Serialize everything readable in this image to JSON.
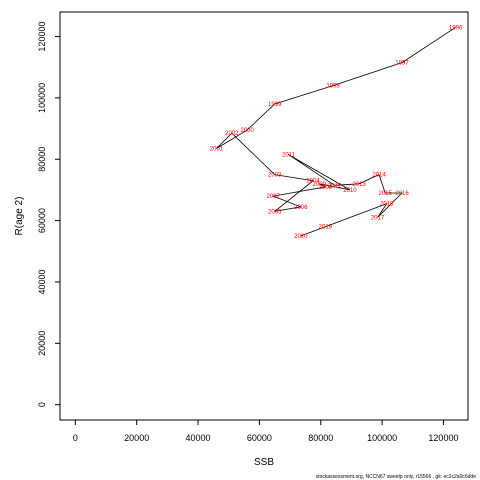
{
  "chart_data": {
    "type": "line",
    "xlabel": "SSB",
    "ylabel": "R(age 2)",
    "xlim": [
      -5000,
      128000
    ],
    "ylim": [
      -5000,
      128000
    ],
    "xticks": [
      0,
      20000,
      40000,
      60000,
      80000,
      100000,
      120000
    ],
    "yticks": [
      0,
      20000,
      40000,
      60000,
      80000,
      100000,
      120000
    ],
    "grid": false,
    "line_color": "#000000",
    "label_color": "#ff0000",
    "points": [
      {
        "label": "1996",
        "x": 124000,
        "y": 123000
      },
      {
        "label": "1997",
        "x": 106500,
        "y": 111500
      },
      {
        "label": "1998",
        "x": 84000,
        "y": 104000
      },
      {
        "label": "1999",
        "x": 65000,
        "y": 98000
      },
      {
        "label": "2000",
        "x": 56000,
        "y": 89500
      },
      {
        "label": "2001",
        "x": 46000,
        "y": 83500
      },
      {
        "label": "2002",
        "x": 51000,
        "y": 88500
      },
      {
        "label": "2003",
        "x": 65000,
        "y": 75000
      },
      {
        "label": "2004",
        "x": 77500,
        "y": 73000
      },
      {
        "label": "2005",
        "x": 65000,
        "y": 63000
      },
      {
        "label": "2006",
        "x": 73500,
        "y": 64500
      },
      {
        "label": "2007",
        "x": 64500,
        "y": 68000
      },
      {
        "label": "2008",
        "x": 81500,
        "y": 71000
      },
      {
        "label": "2009",
        "x": 79500,
        "y": 72000
      },
      {
        "label": "2010",
        "x": 89500,
        "y": 70000
      },
      {
        "label": "2011",
        "x": 69500,
        "y": 81500
      },
      {
        "label": "2012",
        "x": 84500,
        "y": 71500
      },
      {
        "label": "2013",
        "x": 92500,
        "y": 72000
      },
      {
        "label": "2014",
        "x": 99000,
        "y": 75000
      },
      {
        "label": "2015",
        "x": 101000,
        "y": 69000
      },
      {
        "label": "2016",
        "x": 106500,
        "y": 69000
      },
      {
        "label": "2017",
        "x": 98500,
        "y": 61000
      },
      {
        "label": "2018",
        "x": 101500,
        "y": 65500
      },
      {
        "label": "2019",
        "x": 81500,
        "y": 58000
      },
      {
        "label": "2020",
        "x": 73500,
        "y": 55000
      }
    ],
    "footer": "stockassessment.org,  NCCN67  sweetp  only,  r15566 ,  git:  ec2c2a0c6dde"
  }
}
